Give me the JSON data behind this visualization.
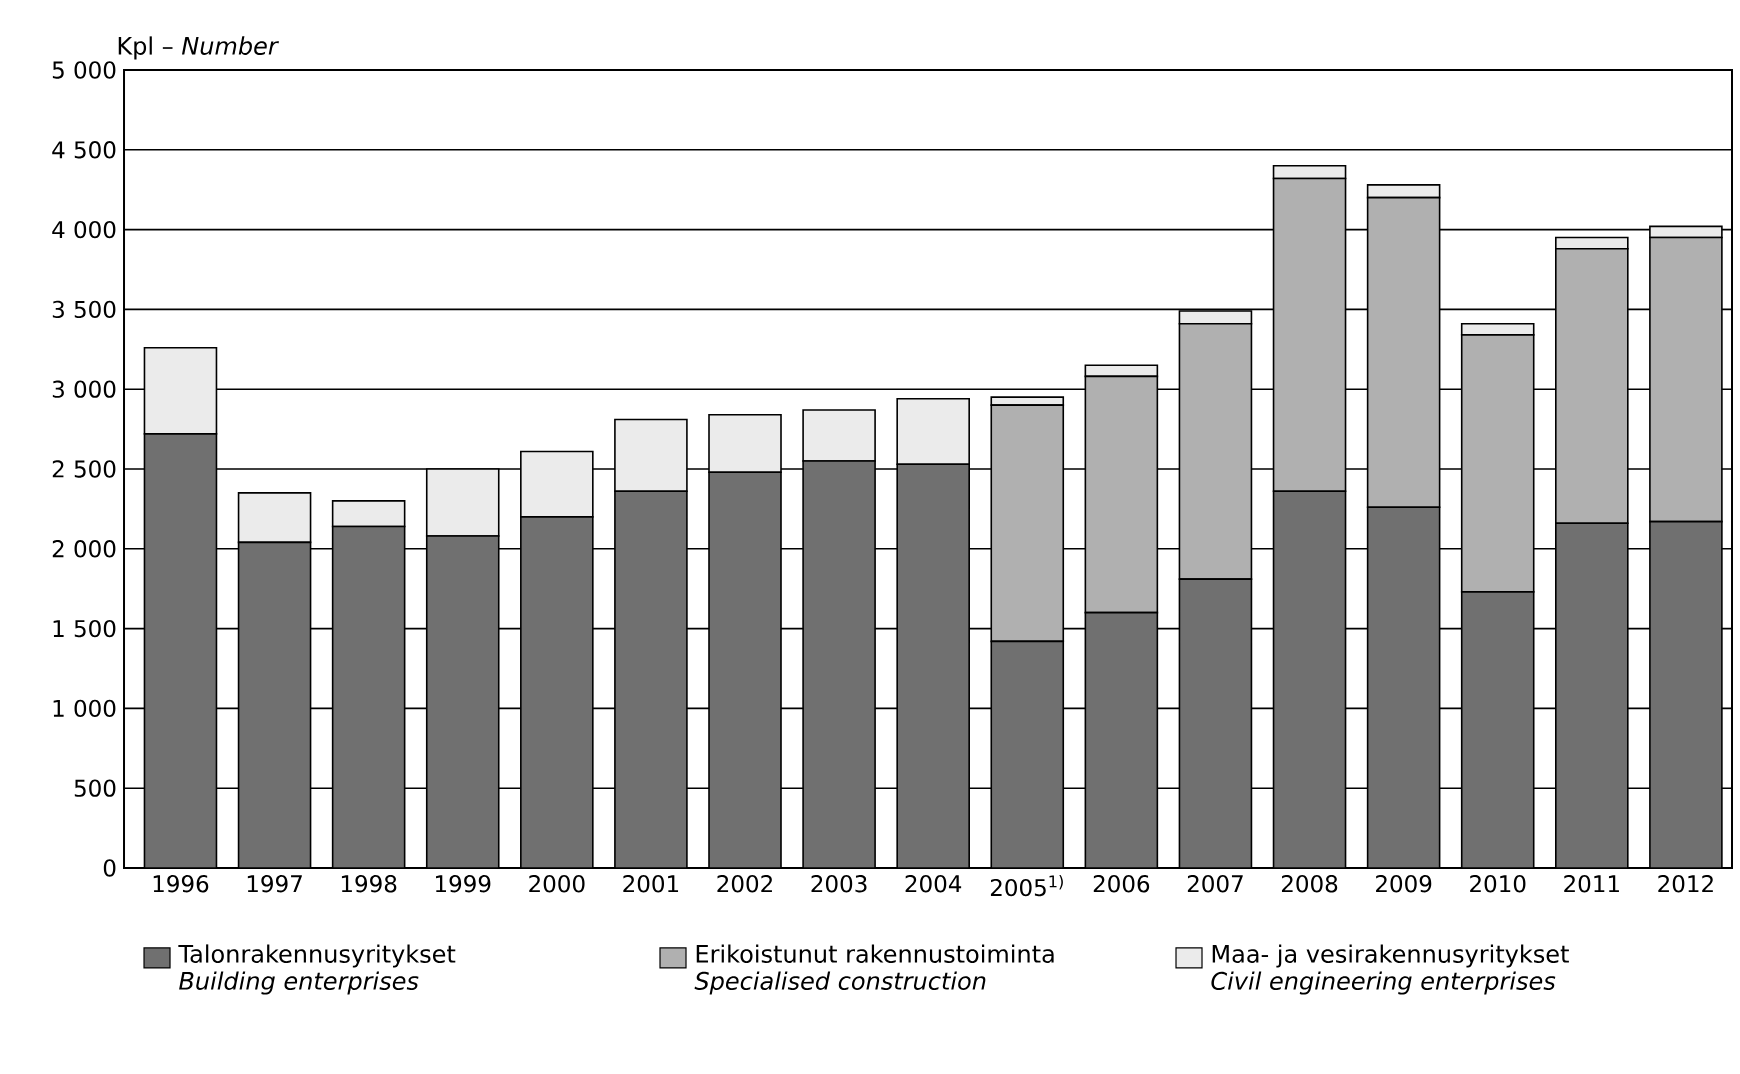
{
  "chart_data": {
    "type": "bar",
    "stacked": true,
    "ylabel": "Kpl – *Number*",
    "categories": [
      "1996",
      "1997",
      "1998",
      "1999",
      "2000",
      "2001",
      "2002",
      "2003",
      "2004",
      "2005$^{1)}$",
      "2006",
      "2007",
      "2008",
      "2009",
      "2010",
      "2011",
      "2012"
    ],
    "series": [
      {
        "name": "Talonrakennusyritykset *Building enterprises*",
        "color": "#707070",
        "values": [
          2720,
          2040,
          2140,
          2080,
          2200,
          2360,
          2480,
          2550,
          2530,
          1420,
          1600,
          1810,
          2360,
          2260,
          1730,
          2160,
          2170
        ]
      },
      {
        "name": "Erikoistunut rakennustoiminta *Specialised construction*",
        "color": "#b0b0b0",
        "values": [
          0,
          0,
          0,
          0,
          0,
          0,
          0,
          0,
          0,
          1480,
          1480,
          1600,
          1960,
          1940,
          1610,
          1720,
          1780
        ]
      },
      {
        "name": "Maa- ja vesirakennusyritykset *Civil engineering enterprises*",
        "color": "#ebebeb",
        "values": [
          540,
          310,
          160,
          420,
          410,
          450,
          360,
          320,
          410,
          50,
          70,
          80,
          80,
          80,
          70,
          70,
          70
        ]
      }
    ],
    "ylim": [
      0,
      5000
    ],
    "yticks": [
      0,
      {
        "value": 500,
        "label": "500"
      },
      {
        "value": 1000,
        "label": "1 000"
      },
      {
        "value": 1500,
        "label": "1 500"
      },
      {
        "value": 2000,
        "label": "2 000"
      },
      {
        "value": 2500,
        "label": "2 500"
      },
      {
        "value": 3000,
        "label": "3 000"
      },
      {
        "value": 3500,
        "label": "3 500"
      },
      {
        "value": 4000,
        "label": "4 000"
      },
      {
        "value": 4500,
        "label": "4 500"
      },
      {
        "value": 5000,
        "label": "5 000"
      }
    ],
    "grid": "y",
    "legend": "bottom"
  }
}
